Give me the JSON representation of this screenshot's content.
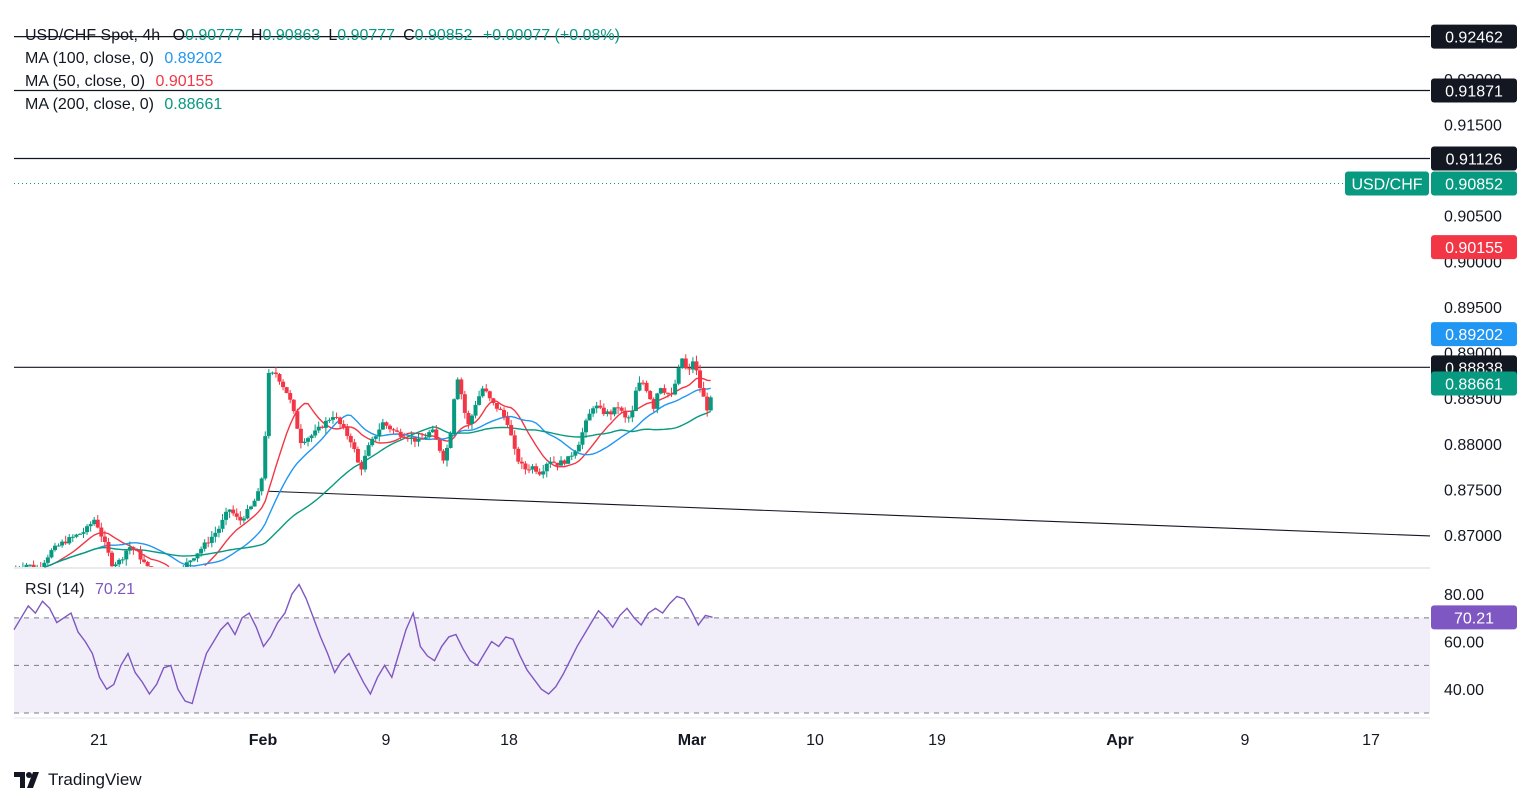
{
  "header": {
    "symbol": "USD/CHF Spot, 4h",
    "ohlc": [
      {
        "k": "O",
        "v": "0.90777"
      },
      {
        "k": "H",
        "v": "0.90863"
      },
      {
        "k": "L",
        "v": "0.90777"
      },
      {
        "k": "C",
        "v": "0.90852"
      }
    ],
    "change": "+0.00077 (+0.08%)",
    "ma_legend": [
      {
        "label": "MA (100, close, 0)",
        "value": "0.89202",
        "color": "#2196f3"
      },
      {
        "label": "MA (50, close, 0)",
        "value": "0.90155",
        "color": "#f23645"
      },
      {
        "label": "MA (200, close, 0)",
        "value": "0.88661",
        "color": "#089981"
      }
    ],
    "rsi_label": "RSI (14)",
    "rsi_value": "70.21"
  },
  "colors": {
    "up": "#089981",
    "down": "#f23645",
    "ma100": "#2196f3",
    "ma50": "#f23645",
    "ma200": "#089981",
    "rsi": "#7e57c2",
    "black_tag": "#131722"
  },
  "brand": {
    "name": "TradingView",
    "icon": "tradingview-logo-icon"
  },
  "chart_data": [
    {
      "type": "candlestick",
      "title": "USD/CHF Spot, 4h",
      "ylim": [
        0.8665,
        0.926
      ],
      "y_ticks": [
        "0.92000",
        "0.91500",
        "0.90500",
        "0.90000",
        "0.89500",
        "0.89000",
        "0.88500",
        "0.88000",
        "0.87500",
        "0.87000"
      ],
      "x_ticks": [
        "21",
        "Feb",
        "9",
        "18",
        "Mar",
        "10",
        "19",
        "Apr",
        "9",
        "17"
      ],
      "price_tags": [
        {
          "label": "",
          "value": "0.92462",
          "color": "#131722"
        },
        {
          "label": "",
          "value": "0.91871",
          "color": "#131722"
        },
        {
          "label": "",
          "value": "0.91126",
          "color": "#131722"
        },
        {
          "label": "USD/CHF",
          "value": "0.90852",
          "color": "#089981"
        },
        {
          "label": "",
          "value": "0.90155",
          "color": "#f23645"
        },
        {
          "label": "",
          "value": "0.89202",
          "color": "#2196f3"
        },
        {
          "label": "",
          "value": "0.88838",
          "color": "#131722"
        },
        {
          "label": "",
          "value": "0.88661",
          "color": "#089981"
        }
      ],
      "horizontal_lines": [
        0.92462,
        0.91871,
        0.91126,
        0.88838
      ],
      "trendline": {
        "from": {
          "x": 0.1795,
          "y": 0.8748
        },
        "to": {
          "x": 1.0,
          "y": 0.8699
        }
      },
      "last_price": 0.90852,
      "close_path": [
        [
          0.0,
          0.8662
        ],
        [
          0.0087,
          0.8668
        ],
        [
          0.0174,
          0.8663
        ],
        [
          0.026,
          0.8682
        ],
        [
          0.0347,
          0.8692
        ],
        [
          0.0434,
          0.8699
        ],
        [
          0.0506,
          0.8705
        ],
        [
          0.0571,
          0.8718
        ],
        [
          0.0636,
          0.8692
        ],
        [
          0.0694,
          0.8668
        ],
        [
          0.0752,
          0.8672
        ],
        [
          0.081,
          0.8688
        ],
        [
          0.0868,
          0.8681
        ],
        [
          0.0983,
          0.8655
        ],
        [
          0.1085,
          0.8652
        ],
        [
          0.1157,
          0.8654
        ],
        [
          0.1215,
          0.8668
        ],
        [
          0.1302,
          0.8682
        ],
        [
          0.1374,
          0.8694
        ],
        [
          0.1446,
          0.8707
        ],
        [
          0.1519,
          0.8729
        ],
        [
          0.1591,
          0.8715
        ],
        [
          0.1678,
          0.8731
        ],
        [
          0.1736,
          0.8749
        ],
        [
          0.1765,
          0.8779
        ],
        [
          0.1794,
          0.8875
        ],
        [
          0.1852,
          0.8877
        ],
        [
          0.1895,
          0.8865
        ],
        [
          0.1939,
          0.8853
        ],
        [
          0.1982,
          0.883
        ],
        [
          0.2025,
          0.8803
        ],
        [
          0.2112,
          0.881
        ],
        [
          0.2184,
          0.8821
        ],
        [
          0.2257,
          0.8832
        ],
        [
          0.2329,
          0.8815
        ],
        [
          0.2387,
          0.8802
        ],
        [
          0.2445,
          0.877
        ],
        [
          0.2503,
          0.8796
        ],
        [
          0.2604,
          0.8823
        ],
        [
          0.2691,
          0.8813
        ],
        [
          0.2778,
          0.8808
        ],
        [
          0.2865,
          0.8802
        ],
        [
          0.2952,
          0.8815
        ],
        [
          0.3039,
          0.8782
        ],
        [
          0.3082,
          0.8812
        ],
        [
          0.3111,
          0.8855
        ],
        [
          0.314,
          0.8878
        ],
        [
          0.3169,
          0.8842
        ],
        [
          0.3212,
          0.8819
        ],
        [
          0.3256,
          0.8843
        ],
        [
          0.3314,
          0.8862
        ],
        [
          0.3372,
          0.8845
        ],
        [
          0.343,
          0.8837
        ],
        [
          0.3488,
          0.8823
        ],
        [
          0.3545,
          0.8786
        ],
        [
          0.3603,
          0.8772
        ],
        [
          0.3661,
          0.8775
        ],
        [
          0.3719,
          0.8768
        ],
        [
          0.3776,
          0.8783
        ],
        [
          0.3834,
          0.8778
        ],
        [
          0.3907,
          0.8782
        ],
        [
          0.3979,
          0.8797
        ],
        [
          0.4037,
          0.8822
        ],
        [
          0.4095,
          0.8843
        ],
        [
          0.4153,
          0.8835
        ],
        [
          0.421,
          0.8833
        ],
        [
          0.4268,
          0.8841
        ],
        [
          0.4326,
          0.8825
        ],
        [
          0.4369,
          0.8835
        ],
        [
          0.4399,
          0.8864
        ],
        [
          0.4442,
          0.8867
        ],
        [
          0.4485,
          0.8855
        ],
        [
          0.4514,
          0.8838
        ],
        [
          0.4557,
          0.8865
        ],
        [
          0.46,
          0.8857
        ],
        [
          0.4644,
          0.8852
        ],
        [
          0.4687,
          0.8876
        ],
        [
          0.4716,
          0.8895
        ],
        [
          0.4759,
          0.8875
        ],
        [
          0.4803,
          0.8895
        ],
        [
          0.4831,
          0.8868
        ],
        [
          0.486,
          0.8855
        ],
        [
          0.4904,
          0.8835
        ],
        [
          0.4933,
          0.8858
        ]
      ]
    },
    {
      "type": "line",
      "title": "RSI (14)",
      "ylim": [
        30,
        88
      ],
      "y_ticks": [
        "80.00",
        "60.00",
        "40.00"
      ],
      "levels": [
        70,
        50,
        30
      ],
      "last_value": "70.21",
      "values": [
        65,
        70,
        75,
        72,
        77,
        74,
        68,
        70,
        72,
        64,
        60,
        55,
        45,
        40,
        42,
        50,
        55,
        47,
        43,
        38,
        42,
        49,
        50,
        40,
        35,
        34,
        45,
        55,
        60,
        65,
        68,
        63,
        70,
        72,
        66,
        58,
        62,
        68,
        72,
        80,
        84,
        78,
        70,
        62,
        55,
        47,
        52,
        55,
        49,
        43,
        38,
        45,
        50,
        45,
        55,
        65,
        72,
        58,
        54,
        52,
        58,
        62,
        63,
        57,
        52,
        50,
        55,
        60,
        58,
        62,
        61,
        54,
        48,
        44,
        40,
        38,
        41,
        46,
        52,
        58,
        63,
        68,
        73,
        70,
        66,
        71,
        74,
        70,
        67,
        72,
        74,
        72,
        76,
        79,
        78,
        73,
        67,
        71,
        70.21
      ]
    }
  ]
}
